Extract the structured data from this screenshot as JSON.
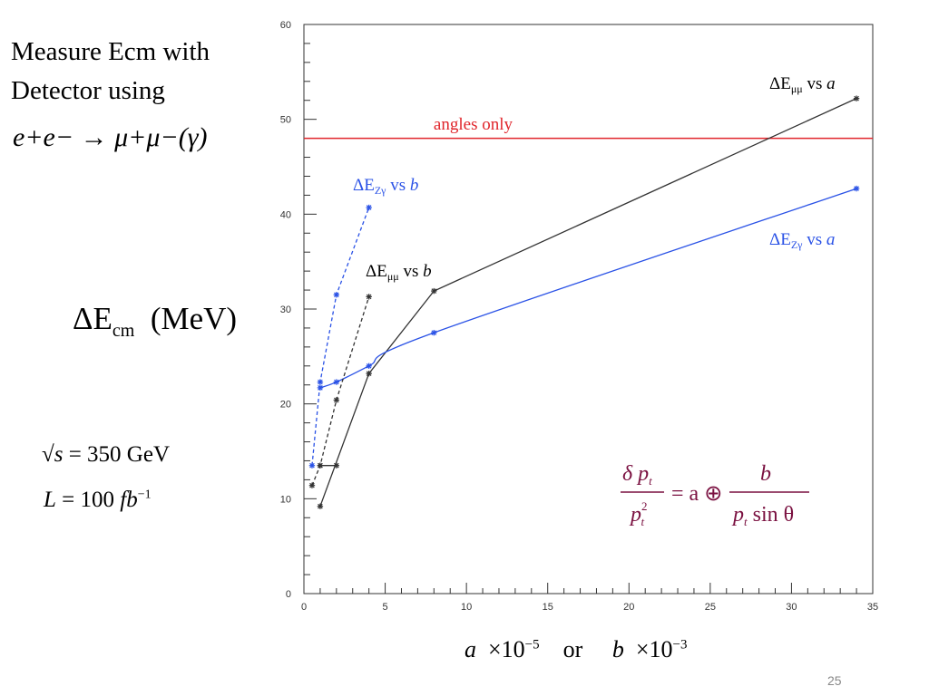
{
  "slide": {
    "title_line1": "Measure Ecm with",
    "title_line2": "Detector using",
    "reaction": "e+e− → μ+μ−(γ)",
    "ylabel_main": "ΔE",
    "ylabel_sub": "cm",
    "ylabel_unit": "(MeV)",
    "energy_lhs": "√s",
    "energy_rhs": "= 350 GeV",
    "lumi_lhs": "L",
    "lumi_mid": "= 100",
    "lumi_unit": "fb",
    "lumi_exp": "−1",
    "xlabel_a": "a",
    "xlabel_times": "×10",
    "xlabel_exp_a": "−5",
    "xlabel_or": "or",
    "xlabel_b": "b",
    "xlabel_exp_b": "−3",
    "page_number": "25"
  },
  "annotations": {
    "angles_only": "angles only",
    "mumu_vs_a": {
      "main": "ΔE",
      "sub": "μμ",
      "rest": " vs ",
      "var": "a"
    },
    "zg_vs_b": {
      "main": "ΔE",
      "sub": "Zγ",
      "rest": " vs ",
      "var": "b"
    },
    "zg_vs_a": {
      "main": "ΔE",
      "sub": "Zγ",
      "rest": " vs ",
      "var": "a"
    },
    "mumu_vs_b": {
      "main": "ΔE",
      "sub": "μμ",
      "rest": " vs ",
      "var": "b"
    }
  },
  "formula": {
    "num_left": "δ p",
    "num_left_sub": "t",
    "den_left": "p",
    "den_left_sup": "2",
    "den_left_sub": "t",
    "middle": "= a ⊕",
    "num_right": "b",
    "den_right": "p",
    "den_right_sub": "t",
    "den_right_rest": " sin θ"
  },
  "chart_data": {
    "type": "line",
    "xlim": [
      0,
      35
    ],
    "ylim": [
      0,
      60
    ],
    "xticks": [
      0,
      5,
      10,
      15,
      20,
      25,
      30,
      35
    ],
    "yticks": [
      0,
      10,
      20,
      30,
      40,
      50,
      60
    ],
    "grid": false,
    "colors": {
      "black": "#333333",
      "blue": "#2a52e6",
      "red": "#e0252b",
      "formula": "#7a1040"
    },
    "reference_line": {
      "label": "angles only",
      "y": 48,
      "color": "#e0252b"
    },
    "series": [
      {
        "label": "ΔEμμ vs a",
        "color": "#333333",
        "dash": false,
        "x": [
          1,
          4,
          8,
          34
        ],
        "y": [
          9.2,
          23.2,
          31.9,
          52.2
        ]
      },
      {
        "label": "ΔEZγ vs a",
        "color": "#2a52e6",
        "dash": false,
        "smooth": true,
        "x": [
          1,
          2,
          4,
          8,
          34
        ],
        "y": [
          21.7,
          22.3,
          24.0,
          27.5,
          42.7
        ]
      },
      {
        "label": "ΔEμμ vs b",
        "color": "#333333",
        "dash": true,
        "x": [
          0.5,
          1,
          2,
          4
        ],
        "y": [
          11.4,
          13.5,
          20.4,
          31.3
        ]
      },
      {
        "label": "ΔEZγ vs b",
        "color": "#2a52e6",
        "dash": true,
        "x": [
          0.5,
          1,
          2,
          4
        ],
        "y": [
          13.5,
          22.3,
          31.5,
          40.7
        ]
      },
      {
        "label": "ΔEμμ vs b (low)",
        "color": "#333333",
        "dash": false,
        "x": [
          1,
          2
        ],
        "y": [
          13.5,
          13.5
        ]
      }
    ]
  }
}
